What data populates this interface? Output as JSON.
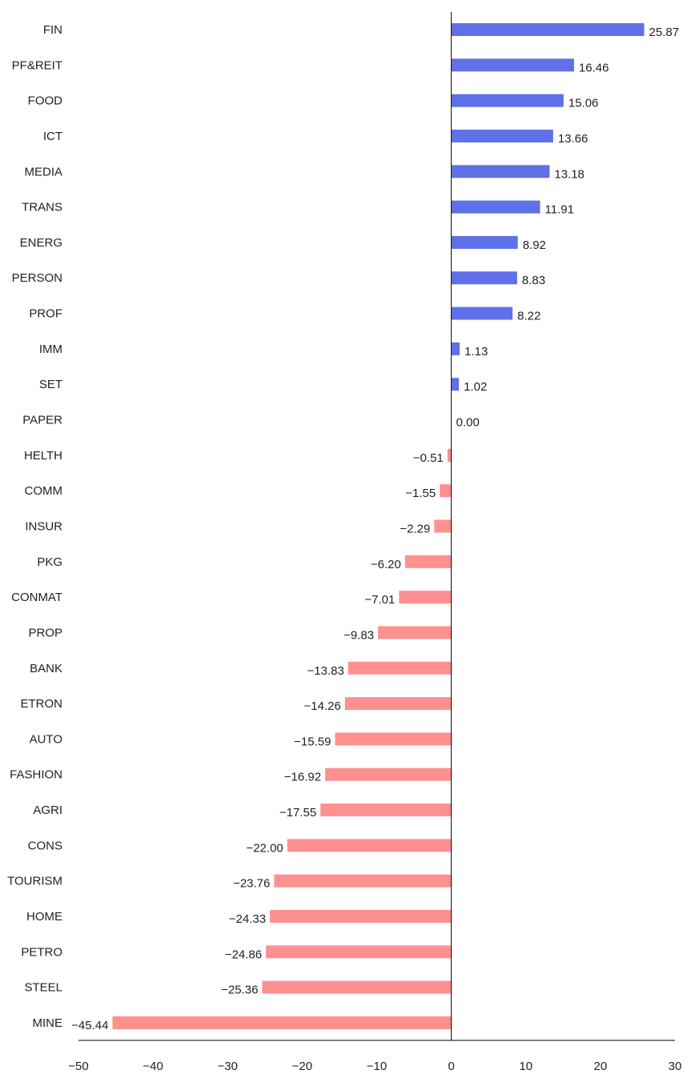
{
  "chart_data": {
    "type": "bar",
    "orientation": "horizontal",
    "categories": [
      "FIN",
      "PF&REIT",
      "FOOD",
      "ICT",
      "MEDIA",
      "TRANS",
      "ENERG",
      "PERSON",
      "PROF",
      "IMM",
      "SET",
      "PAPER",
      "HELTH",
      "COMM",
      "INSUR",
      "PKG",
      "CONMAT",
      "PROP",
      "BANK",
      "ETRON",
      "AUTO",
      "FASHION",
      "AGRI",
      "CONS",
      "TOURISM",
      "HOME",
      "PETRO",
      "STEEL",
      "MINE"
    ],
    "values": [
      25.87,
      16.46,
      15.06,
      13.66,
      13.18,
      11.91,
      8.92,
      8.83,
      8.22,
      1.13,
      1.02,
      0.0,
      -0.51,
      -1.55,
      -2.29,
      -6.2,
      -7.01,
      -9.83,
      -13.83,
      -14.26,
      -15.59,
      -16.92,
      -17.55,
      -22.0,
      -23.76,
      -24.33,
      -24.86,
      -25.36,
      -45.44
    ],
    "value_labels": [
      "25.87",
      "16.46",
      "15.06",
      "13.66",
      "13.18",
      "11.91",
      "8.92",
      "8.83",
      "8.22",
      "1.13",
      "1.02",
      "0.00",
      "-0.51",
      "-1.55",
      "-2.29",
      "-6.20",
      "-7.01",
      "-9.83",
      "-13.83",
      "-14.26",
      "-15.59",
      "-16.92",
      "-17.55",
      "-22.00",
      "-23.76",
      "-24.33",
      "-24.86",
      "-25.36",
      "-45.44"
    ],
    "xlim": [
      -50,
      30
    ],
    "xticks": [
      -50,
      -40,
      -30,
      -20,
      -10,
      0,
      10,
      20,
      30
    ],
    "xtick_labels": [
      "-50",
      "-40",
      "-30",
      "-20",
      "-10",
      "0",
      "10",
      "20",
      "30"
    ],
    "title": "",
    "xlabel": "",
    "ylabel": "",
    "grid": false,
    "colors": {
      "positive": "#6070e8",
      "negative": "#ff9090",
      "axis": "#000000",
      "text": "#222222"
    }
  }
}
